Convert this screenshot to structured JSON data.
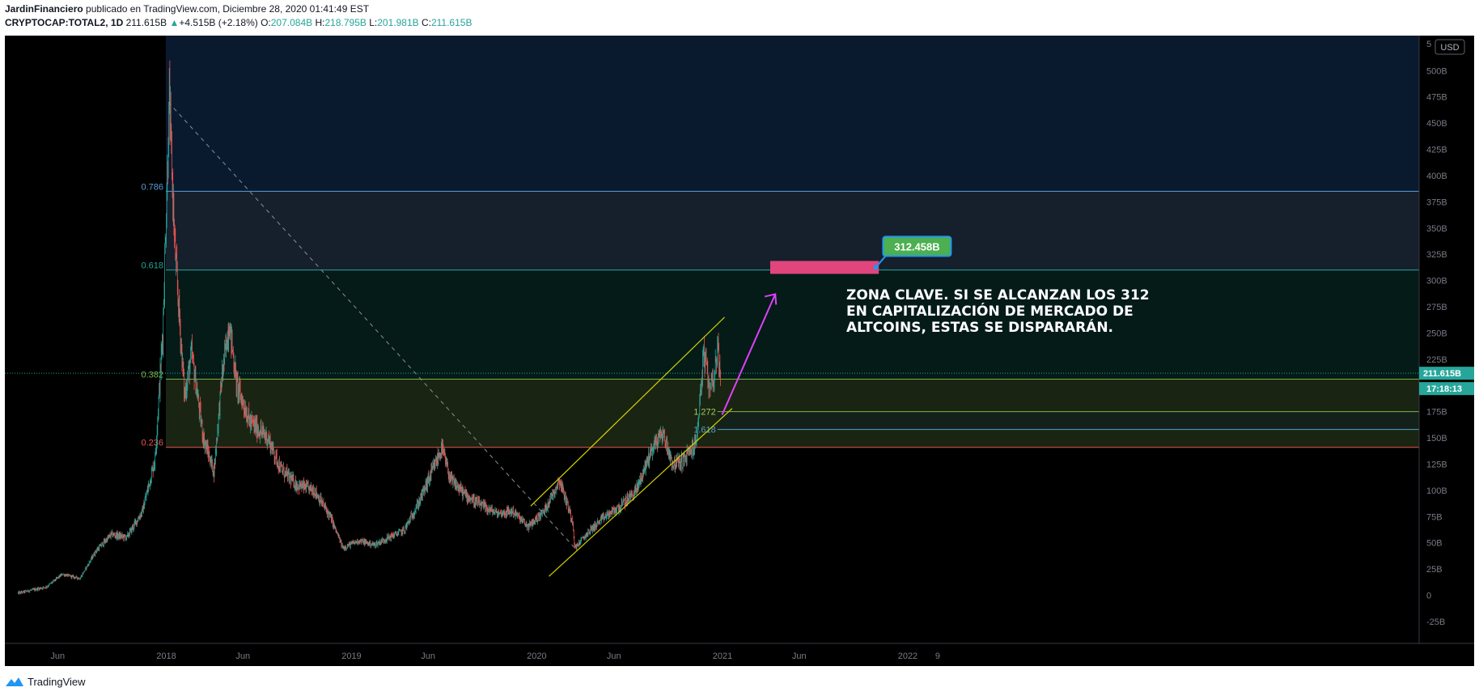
{
  "header": {
    "author": "JardinFinanciero",
    "published_text": "publicado en TradingView.com, Diciembre 28, 2020 01:41:49 EST",
    "symbol": "CRYPTOCAP:TOTAL2, 1D",
    "last": "211.615B",
    "change": "+4.515B (+2.18%)",
    "o_label": "O:",
    "o_value": "207.084B",
    "h_label": "H:",
    "h_value": "218.795B",
    "l_label": "L:",
    "l_value": "201.981B",
    "c_label": "C:",
    "c_value": "211.615B"
  },
  "footer": {
    "brand": "TradingView"
  },
  "currency_button": "USD",
  "price_tag": "211.615B",
  "countdown_tag": "17:18:13",
  "annotation": {
    "callout_value": "312.458B",
    "note_lines": [
      "ZONA CLAVE. SI SE ALCANZAN LOS 312",
      "EN CAPITALIZACIÓN DE MERCADO DE",
      "ALTCOINS, ESTAS SE DISPARARÁN."
    ]
  },
  "colors": {
    "background": "#000000",
    "fib_top_zone": "#0a1a2e",
    "fib_0786_line": "#5b9bd5",
    "fib_0618_line": "#26a69a",
    "fib_0382_line": "#7cb342",
    "fib_0236_line": "#ef5350",
    "candle_up": "#26a69a",
    "candle_down": "#ef5350",
    "channel": "#d4d400",
    "arrow": "#e040fb",
    "target_box": "#e0457b",
    "callout_bg": "#4caf50",
    "callout_border": "#2196f3"
  },
  "chart_data": {
    "type": "candlestick",
    "y_unit": "B USD",
    "ylim": [
      -40,
      525
    ],
    "y_ticks": [
      "-25B",
      "0",
      "25B",
      "50B",
      "75B",
      "100B",
      "125B",
      "150B",
      "175B",
      "200B",
      "225B",
      "250B",
      "275B",
      "300B",
      "325B",
      "350B",
      "375B",
      "400B",
      "425B",
      "450B",
      "475B",
      "500B",
      "5"
    ],
    "x_ticks": [
      "Jun",
      "2018",
      "Jun",
      "2019",
      "Jun",
      "2020",
      "Jun",
      "2021",
      "Jun",
      "2022",
      "9"
    ],
    "fib_levels": [
      {
        "label": "0.786",
        "value": 385
      },
      {
        "label": "0.618",
        "value": 310
      },
      {
        "label": "0.382",
        "value": 206
      },
      {
        "label": "0.236",
        "value": 141
      }
    ],
    "fib_extension_labels": [
      {
        "label": "1.272",
        "value": 175
      },
      {
        "label": "1.618",
        "value": 158
      }
    ],
    "target_value": 312.458,
    "last_price": 211.615,
    "price_path": [
      [
        "2017-03-15",
        2
      ],
      [
        "2017-05-10",
        8
      ],
      [
        "2017-06-10",
        20
      ],
      [
        "2017-07-15",
        16
      ],
      [
        "2017-08-15",
        42
      ],
      [
        "2017-09-15",
        58
      ],
      [
        "2017-10-15",
        55
      ],
      [
        "2017-11-15",
        80
      ],
      [
        "2017-12-10",
        130
      ],
      [
        "2017-12-25",
        250
      ],
      [
        "2018-01-07",
        470
      ],
      [
        "2018-01-18",
        330
      ],
      [
        "2018-02-06",
        190
      ],
      [
        "2018-02-20",
        230
      ],
      [
        "2018-03-15",
        150
      ],
      [
        "2018-04-05",
        118
      ],
      [
        "2018-04-20",
        205
      ],
      [
        "2018-05-05",
        260
      ],
      [
        "2018-05-20",
        200
      ],
      [
        "2018-06-15",
        165
      ],
      [
        "2018-07-20",
        150
      ],
      [
        "2018-08-15",
        120
      ],
      [
        "2018-09-15",
        105
      ],
      [
        "2018-10-20",
        100
      ],
      [
        "2018-11-20",
        75
      ],
      [
        "2018-12-15",
        45
      ],
      [
        "2019-01-15",
        52
      ],
      [
        "2019-02-15",
        48
      ],
      [
        "2019-03-15",
        55
      ],
      [
        "2019-04-15",
        62
      ],
      [
        "2019-05-15",
        90
      ],
      [
        "2019-06-15",
        125
      ],
      [
        "2019-06-28",
        140
      ],
      [
        "2019-07-15",
        110
      ],
      [
        "2019-08-15",
        95
      ],
      [
        "2019-09-15",
        85
      ],
      [
        "2019-10-15",
        78
      ],
      [
        "2019-11-15",
        80
      ],
      [
        "2019-12-15",
        65
      ],
      [
        "2020-01-15",
        80
      ],
      [
        "2020-02-15",
        110
      ],
      [
        "2020-03-12",
        70
      ],
      [
        "2020-03-16",
        45
      ],
      [
        "2020-04-15",
        62
      ],
      [
        "2020-05-15",
        75
      ],
      [
        "2020-06-15",
        85
      ],
      [
        "2020-07-15",
        100
      ],
      [
        "2020-08-15",
        140
      ],
      [
        "2020-09-05",
        155
      ],
      [
        "2020-09-25",
        125
      ],
      [
        "2020-10-15",
        128
      ],
      [
        "2020-11-10",
        145
      ],
      [
        "2020-11-25",
        230
      ],
      [
        "2020-12-05",
        200
      ],
      [
        "2020-12-15",
        208
      ],
      [
        "2020-12-22",
        235
      ],
      [
        "2020-12-28",
        211.6
      ]
    ]
  }
}
